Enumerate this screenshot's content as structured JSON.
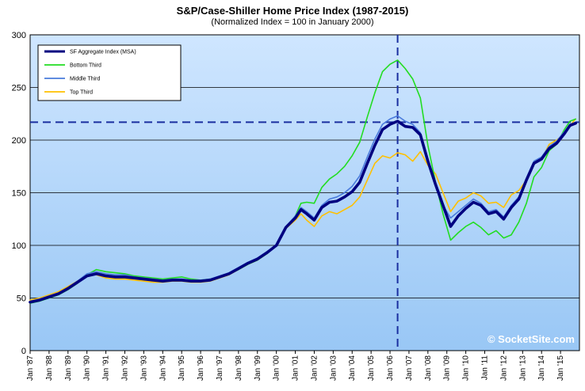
{
  "chart_data": {
    "type": "line",
    "title": "S&P/Case-Shiller Home Price Index (1987-2015)",
    "subtitle": "(Normalized Index = 100 in January 2000)",
    "ylim": [
      0,
      300
    ],
    "yticks": [
      0,
      50,
      100,
      150,
      200,
      250,
      300
    ],
    "xlim": [
      1987.0,
      2016.0
    ],
    "xticks": [
      {
        "year": 1987,
        "label": "Jan '87"
      },
      {
        "year": 1988,
        "label": "Jan '88"
      },
      {
        "year": 1989,
        "label": "Jan '89"
      },
      {
        "year": 1990,
        "label": "Jan '90"
      },
      {
        "year": 1991,
        "label": "Jan '91"
      },
      {
        "year": 1992,
        "label": "Jan '92"
      },
      {
        "year": 1993,
        "label": "Jan '93"
      },
      {
        "year": 1994,
        "label": "Jan '94"
      },
      {
        "year": 1995,
        "label": "Jan '95"
      },
      {
        "year": 1996,
        "label": "Jan '96"
      },
      {
        "year": 1997,
        "label": "Jan '97"
      },
      {
        "year": 1998,
        "label": "Jan '98"
      },
      {
        "year": 1999,
        "label": "Jan '99"
      },
      {
        "year": 2000,
        "label": "Jan '00"
      },
      {
        "year": 2001,
        "label": "Jan '01"
      },
      {
        "year": 2002,
        "label": "Jan '02"
      },
      {
        "year": 2003,
        "label": "Jan '03"
      },
      {
        "year": 2004,
        "label": "Jan '04"
      },
      {
        "year": 2005,
        "label": "Jan '05"
      },
      {
        "year": 2006,
        "label": "Jan '06"
      },
      {
        "year": 2007,
        "label": "Jan '07"
      },
      {
        "year": 2008,
        "label": "Jan '08"
      },
      {
        "year": 2009,
        "label": "Jan '09"
      },
      {
        "year": 2010,
        "label": "Jan '10"
      },
      {
        "year": 2011,
        "label": "Jan '11"
      },
      {
        "year": 2012,
        "label": "Jan '12"
      },
      {
        "year": 2013,
        "label": "Jan '13"
      },
      {
        "year": 2014,
        "label": "Jan '14"
      },
      {
        "year": 2015,
        "label": "Jan '15"
      }
    ],
    "grid": "horizontal",
    "legend": "top-left",
    "reference_lines": {
      "horizontal_y": 217,
      "vertical_x": 2006.4
    },
    "watermark": "© SocketSite.com",
    "series": [
      {
        "name": "SF Aggregate Index (MSA)",
        "color": "#000080",
        "points": [
          [
            1987.0,
            46
          ],
          [
            1987.5,
            48
          ],
          [
            1988.0,
            51
          ],
          [
            1988.5,
            54
          ],
          [
            1989.0,
            59
          ],
          [
            1989.5,
            65
          ],
          [
            1990.0,
            71
          ],
          [
            1990.5,
            73
          ],
          [
            1991.0,
            71
          ],
          [
            1991.5,
            70
          ],
          [
            1992.0,
            70
          ],
          [
            1992.5,
            69
          ],
          [
            1993.0,
            68
          ],
          [
            1993.5,
            67
          ],
          [
            1994.0,
            66
          ],
          [
            1994.5,
            67
          ],
          [
            1995.0,
            67
          ],
          [
            1995.5,
            66
          ],
          [
            1996.0,
            66
          ],
          [
            1996.5,
            67
          ],
          [
            1997.0,
            70
          ],
          [
            1997.5,
            73
          ],
          [
            1998.0,
            78
          ],
          [
            1998.5,
            83
          ],
          [
            1999.0,
            87
          ],
          [
            1999.5,
            93
          ],
          [
            2000.0,
            100
          ],
          [
            2000.5,
            117
          ],
          [
            2001.0,
            126
          ],
          [
            2001.3,
            134
          ],
          [
            2001.6,
            130
          ],
          [
            2002.0,
            124
          ],
          [
            2002.4,
            136
          ],
          [
            2002.8,
            141
          ],
          [
            2003.2,
            142
          ],
          [
            2003.6,
            146
          ],
          [
            2004.0,
            151
          ],
          [
            2004.4,
            160
          ],
          [
            2004.8,
            178
          ],
          [
            2005.2,
            195
          ],
          [
            2005.6,
            210
          ],
          [
            2006.0,
            215
          ],
          [
            2006.4,
            218
          ],
          [
            2006.8,
            213
          ],
          [
            2007.2,
            212
          ],
          [
            2007.6,
            205
          ],
          [
            2008.0,
            180
          ],
          [
            2008.4,
            158
          ],
          [
            2008.8,
            138
          ],
          [
            2009.2,
            118
          ],
          [
            2009.6,
            128
          ],
          [
            2010.0,
            135
          ],
          [
            2010.4,
            141
          ],
          [
            2010.8,
            138
          ],
          [
            2011.2,
            130
          ],
          [
            2011.6,
            132
          ],
          [
            2012.0,
            125
          ],
          [
            2012.4,
            136
          ],
          [
            2012.8,
            144
          ],
          [
            2013.2,
            162
          ],
          [
            2013.6,
            178
          ],
          [
            2014.0,
            182
          ],
          [
            2014.4,
            192
          ],
          [
            2014.8,
            197
          ],
          [
            2015.2,
            206
          ],
          [
            2015.5,
            214
          ],
          [
            2015.8,
            216
          ]
        ]
      },
      {
        "name": "Bottom Third",
        "color": "#22dd22",
        "points": [
          [
            1987.0,
            45
          ],
          [
            1987.5,
            47
          ],
          [
            1988.0,
            50
          ],
          [
            1988.5,
            53
          ],
          [
            1989.0,
            58
          ],
          [
            1989.5,
            64
          ],
          [
            1990.0,
            72
          ],
          [
            1990.5,
            77
          ],
          [
            1991.0,
            75
          ],
          [
            1991.5,
            74
          ],
          [
            1992.0,
            73
          ],
          [
            1992.5,
            71
          ],
          [
            1993.0,
            70
          ],
          [
            1993.5,
            69
          ],
          [
            1994.0,
            68
          ],
          [
            1994.5,
            69
          ],
          [
            1995.0,
            70
          ],
          [
            1995.5,
            68
          ],
          [
            1996.0,
            67
          ],
          [
            1996.5,
            68
          ],
          [
            1997.0,
            70
          ],
          [
            1997.5,
            73
          ],
          [
            1998.0,
            77
          ],
          [
            1998.5,
            82
          ],
          [
            1999.0,
            86
          ],
          [
            1999.5,
            92
          ],
          [
            2000.0,
            100
          ],
          [
            2000.5,
            116
          ],
          [
            2001.0,
            128
          ],
          [
            2001.3,
            140
          ],
          [
            2001.6,
            141
          ],
          [
            2002.0,
            140
          ],
          [
            2002.4,
            155
          ],
          [
            2002.8,
            163
          ],
          [
            2003.2,
            168
          ],
          [
            2003.6,
            175
          ],
          [
            2004.0,
            185
          ],
          [
            2004.4,
            198
          ],
          [
            2004.8,
            222
          ],
          [
            2005.2,
            245
          ],
          [
            2005.6,
            265
          ],
          [
            2006.0,
            272
          ],
          [
            2006.4,
            276
          ],
          [
            2006.8,
            268
          ],
          [
            2007.2,
            258
          ],
          [
            2007.6,
            240
          ],
          [
            2008.0,
            195
          ],
          [
            2008.4,
            160
          ],
          [
            2008.8,
            130
          ],
          [
            2009.2,
            105
          ],
          [
            2009.6,
            112
          ],
          [
            2010.0,
            118
          ],
          [
            2010.4,
            122
          ],
          [
            2010.8,
            117
          ],
          [
            2011.2,
            110
          ],
          [
            2011.6,
            114
          ],
          [
            2012.0,
            107
          ],
          [
            2012.4,
            110
          ],
          [
            2012.8,
            122
          ],
          [
            2013.2,
            140
          ],
          [
            2013.6,
            165
          ],
          [
            2014.0,
            174
          ],
          [
            2014.4,
            190
          ],
          [
            2014.8,
            196
          ],
          [
            2015.2,
            210
          ],
          [
            2015.5,
            218
          ],
          [
            2015.8,
            220
          ]
        ]
      },
      {
        "name": "Middle Third",
        "color": "#4a7bdc",
        "points": [
          [
            1987.0,
            47
          ],
          [
            1987.5,
            49
          ],
          [
            1988.0,
            52
          ],
          [
            1988.5,
            55
          ],
          [
            1989.0,
            60
          ],
          [
            1989.5,
            66
          ],
          [
            1990.0,
            73
          ],
          [
            1990.5,
            75
          ],
          [
            1991.0,
            73
          ],
          [
            1991.5,
            72
          ],
          [
            1992.0,
            72
          ],
          [
            1992.5,
            70
          ],
          [
            1993.0,
            69
          ],
          [
            1993.5,
            68
          ],
          [
            1994.0,
            67
          ],
          [
            1994.5,
            68
          ],
          [
            1995.0,
            68
          ],
          [
            1995.5,
            67
          ],
          [
            1996.0,
            67
          ],
          [
            1996.5,
            68
          ],
          [
            1997.0,
            71
          ],
          [
            1997.5,
            74
          ],
          [
            1998.0,
            79
          ],
          [
            1998.5,
            84
          ],
          [
            1999.0,
            88
          ],
          [
            1999.5,
            94
          ],
          [
            2000.0,
            100
          ],
          [
            2000.5,
            118
          ],
          [
            2001.0,
            128
          ],
          [
            2001.3,
            136
          ],
          [
            2001.6,
            132
          ],
          [
            2002.0,
            126
          ],
          [
            2002.4,
            138
          ],
          [
            2002.8,
            144
          ],
          [
            2003.2,
            146
          ],
          [
            2003.6,
            150
          ],
          [
            2004.0,
            156
          ],
          [
            2004.4,
            166
          ],
          [
            2004.8,
            184
          ],
          [
            2005.2,
            201
          ],
          [
            2005.6,
            215
          ],
          [
            2006.0,
            220
          ],
          [
            2006.4,
            223
          ],
          [
            2006.8,
            218
          ],
          [
            2007.2,
            215
          ],
          [
            2007.6,
            207
          ],
          [
            2008.0,
            182
          ],
          [
            2008.4,
            158
          ],
          [
            2008.8,
            138
          ],
          [
            2009.2,
            126
          ],
          [
            2009.6,
            132
          ],
          [
            2010.0,
            138
          ],
          [
            2010.4,
            144
          ],
          [
            2010.8,
            140
          ],
          [
            2011.2,
            132
          ],
          [
            2011.6,
            134
          ],
          [
            2012.0,
            127
          ],
          [
            2012.4,
            138
          ],
          [
            2012.8,
            146
          ],
          [
            2013.2,
            164
          ],
          [
            2013.6,
            180
          ],
          [
            2014.0,
            184
          ],
          [
            2014.4,
            194
          ],
          [
            2014.8,
            199
          ],
          [
            2015.2,
            208
          ],
          [
            2015.5,
            215
          ],
          [
            2015.8,
            217
          ]
        ]
      },
      {
        "name": "Top Third",
        "color": "#ffc000",
        "points": [
          [
            1987.0,
            48
          ],
          [
            1987.5,
            50
          ],
          [
            1988.0,
            53
          ],
          [
            1988.5,
            56
          ],
          [
            1989.0,
            61
          ],
          [
            1989.5,
            66
          ],
          [
            1990.0,
            72
          ],
          [
            1990.5,
            72
          ],
          [
            1991.0,
            69
          ],
          [
            1991.5,
            68
          ],
          [
            1992.0,
            68
          ],
          [
            1992.5,
            67
          ],
          [
            1993.0,
            66
          ],
          [
            1993.5,
            65
          ],
          [
            1994.0,
            65
          ],
          [
            1994.5,
            66
          ],
          [
            1995.0,
            66
          ],
          [
            1995.5,
            65
          ],
          [
            1996.0,
            65
          ],
          [
            1996.5,
            66
          ],
          [
            1997.0,
            69
          ],
          [
            1997.5,
            72
          ],
          [
            1998.0,
            77
          ],
          [
            1998.5,
            82
          ],
          [
            1999.0,
            86
          ],
          [
            1999.5,
            92
          ],
          [
            2000.0,
            100
          ],
          [
            2000.5,
            116
          ],
          [
            2001.0,
            124
          ],
          [
            2001.3,
            130
          ],
          [
            2001.6,
            124
          ],
          [
            2002.0,
            118
          ],
          [
            2002.4,
            128
          ],
          [
            2002.8,
            132
          ],
          [
            2003.2,
            130
          ],
          [
            2003.6,
            134
          ],
          [
            2004.0,
            138
          ],
          [
            2004.4,
            146
          ],
          [
            2004.8,
            162
          ],
          [
            2005.2,
            178
          ],
          [
            2005.6,
            185
          ],
          [
            2006.0,
            183
          ],
          [
            2006.4,
            188
          ],
          [
            2006.8,
            186
          ],
          [
            2007.2,
            180
          ],
          [
            2007.6,
            189
          ],
          [
            2008.0,
            176
          ],
          [
            2008.4,
            168
          ],
          [
            2008.8,
            150
          ],
          [
            2009.2,
            132
          ],
          [
            2009.6,
            142
          ],
          [
            2010.0,
            145
          ],
          [
            2010.4,
            150
          ],
          [
            2010.8,
            147
          ],
          [
            2011.2,
            140
          ],
          [
            2011.6,
            141
          ],
          [
            2012.0,
            136
          ],
          [
            2012.4,
            148
          ],
          [
            2012.8,
            152
          ],
          [
            2013.2,
            162
          ],
          [
            2013.6,
            177
          ],
          [
            2014.0,
            182
          ],
          [
            2014.4,
            196
          ],
          [
            2014.8,
            200
          ],
          [
            2015.2,
            206
          ],
          [
            2015.5,
            214
          ],
          [
            2015.8,
            220
          ]
        ]
      }
    ]
  }
}
